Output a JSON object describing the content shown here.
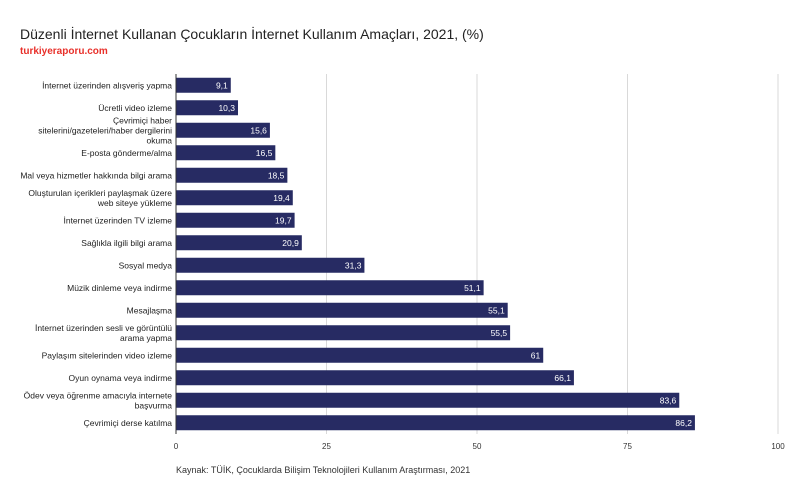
{
  "header": {
    "title": "Düzenli İnternet Kullanan Çocukların İnternet Kullanım Amaçları, 2021, (%)",
    "site": "turkiyeraporu.com",
    "site_color": "#e8302a"
  },
  "footer": {
    "source": "Kaynak: TÜİK, Çocuklarda Bilişim Teknolojileri Kullanım Araştırması, 2021"
  },
  "chart_data": {
    "type": "bar",
    "orientation": "horizontal",
    "title": "Düzenli İnternet Kullanan Çocukların İnternet Kullanım Amaçları, 2021, (%)",
    "categories": [
      "İnternet üzerinden alışveriş yapma",
      "Ücretli video izleme",
      "Çevrimiçi haber sitelerini/gazeteleri/haber dergilerini okuma",
      "E-posta gönderme/alma",
      "Mal veya hizmetler hakkında bilgi arama",
      "Oluşturulan içerikleri paylaşmak üzere web siteye yükleme",
      "İnternet üzerinden TV izleme",
      "Sağlıkla ilgili bilgi arama",
      "Sosyal medya",
      "Müzik dinleme veya indirme",
      "Mesajlaşma",
      "İnternet üzerinden sesli ve görüntülü arama yapma",
      "Paylaşım sitelerinden video izleme",
      "Oyun oynama veya indirme",
      "Ödev veya öğrenme amacıyla internete başvurma",
      "Çevrimiçi derse katılma"
    ],
    "values": [
      9.1,
      10.3,
      15.6,
      16.5,
      18.5,
      19.4,
      19.7,
      20.9,
      31.3,
      51.1,
      55.1,
      55.5,
      61,
      66.1,
      83.6,
      86.2
    ],
    "value_labels": [
      "9,1",
      "10,3",
      "15,6",
      "16,5",
      "18,5",
      "19,4",
      "19,7",
      "20,9",
      "31,3",
      "51,1",
      "55,1",
      "55,5",
      "61",
      "66,1",
      "83,6",
      "86,2"
    ],
    "xlim": [
      0,
      100
    ],
    "xticks": [
      0,
      25,
      50,
      75,
      100
    ],
    "xtick_labels": [
      "0",
      "25",
      "50",
      "75",
      "100"
    ],
    "bar_color": "#272b63",
    "grid": true
  }
}
